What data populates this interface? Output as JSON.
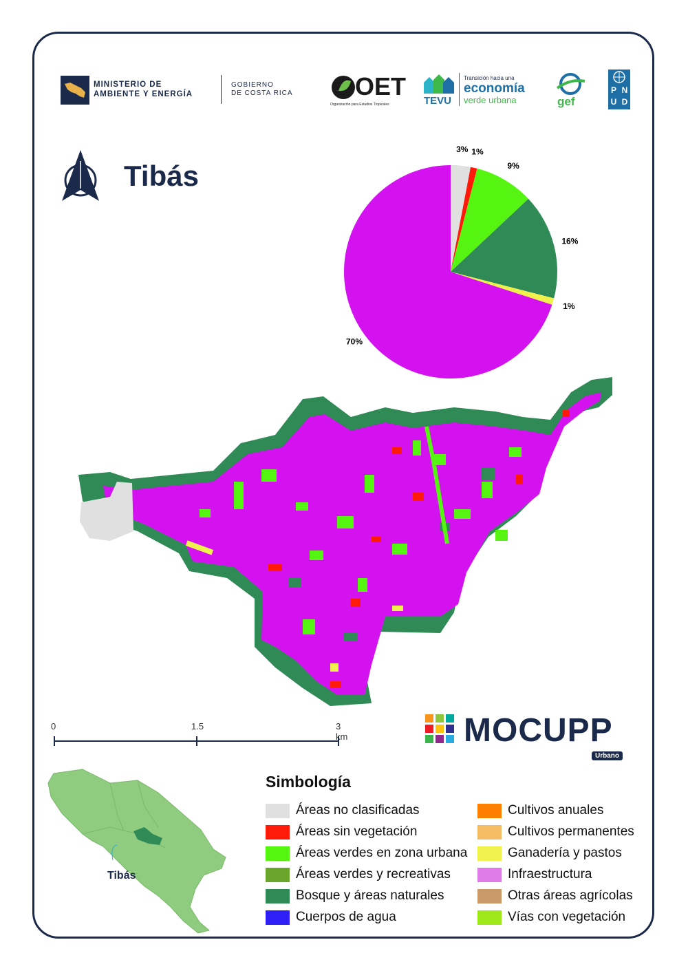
{
  "header": {
    "ministry_line1": "MINISTERIO DE",
    "ministry_line2": "AMBIENTE Y ENERGÍA",
    "gov_line1": "GOBIERNO",
    "gov_line2": "DE COSTA RICA",
    "oet_name": "OET",
    "oet_sub": "Organización para Estudios Tropicales",
    "tevu_name": "TEVU",
    "tevu_tag": "Transición hacia una",
    "tevu_line1": "economía",
    "tevu_line2": "verde urbana",
    "gef": "gef",
    "pnud": [
      "P",
      "N",
      "U",
      "D"
    ]
  },
  "title": "Tibás",
  "chart_data": {
    "type": "pie",
    "labels": [
      "3%",
      "1%",
      "9%",
      "16%",
      "1%",
      "70%"
    ],
    "values": [
      3,
      1,
      9,
      16,
      1,
      70
    ],
    "colors": [
      "#e0e0e0",
      "#ff1a0a",
      "#55f511",
      "#2f8a56",
      "#f1f14e",
      "#d412f0"
    ]
  },
  "scale": {
    "labels": [
      "0",
      "1.5",
      "3 km"
    ]
  },
  "mocupp": {
    "name": "MOCUPP",
    "badge": "Urbano"
  },
  "inset": {
    "label": "Tibás"
  },
  "legend": {
    "title": "Simbología",
    "items": [
      {
        "label": "Áreas no clasificadas",
        "color": "#e0e0e0"
      },
      {
        "label": "Áreas sin vegetación",
        "color": "#ff1a0a"
      },
      {
        "label": "Áreas verdes en zona urbana",
        "color": "#55f511"
      },
      {
        "label": "Áreas verdes y recreativas",
        "color": "#6aa62c"
      },
      {
        "label": "Bosque y áreas naturales",
        "color": "#2f8a56"
      },
      {
        "label": "Cuerpos de agua",
        "color": "#2d1ff5"
      },
      {
        "label": "Cultivos anuales",
        "color": "#ff8000"
      },
      {
        "label": "Cultivos permanentes",
        "color": "#f5bc66"
      },
      {
        "label": "Ganadería y pastos",
        "color": "#f1f14e"
      },
      {
        "label": "Infraestructura",
        "color": "#e07ce8"
      },
      {
        "label": "Otras áreas agrícolas",
        "color": "#c99a68"
      },
      {
        "label": "Vías con vegetación",
        "color": "#9ee81a"
      }
    ]
  }
}
